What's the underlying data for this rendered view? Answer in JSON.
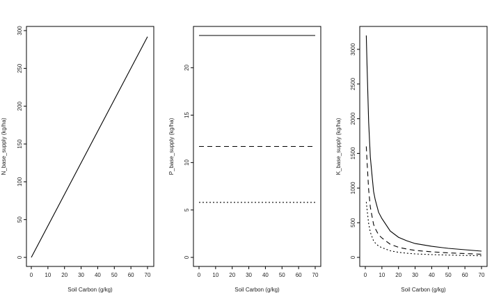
{
  "chart_data": [
    {
      "type": "line",
      "xlabel": "Soil Carbon (g/kg)",
      "ylabel": "N_base_supply (kg/ha)",
      "xlim": [
        0,
        70
      ],
      "ylim": [
        0,
        300
      ],
      "xticks": [
        0,
        10,
        20,
        30,
        40,
        50,
        60,
        70
      ],
      "yticks": [
        0,
        50,
        100,
        150,
        200,
        250,
        300
      ],
      "grid": false,
      "series": [
        {
          "style": "solid",
          "x": [
            0,
            70
          ],
          "y": [
            0,
            292
          ]
        }
      ]
    },
    {
      "type": "line",
      "xlabel": "Soil Carbon (g/kg)",
      "ylabel": "P_base_supply (kg/ha)",
      "xlim": [
        0,
        70
      ],
      "ylim": [
        0,
        23.4
      ],
      "xticks": [
        0,
        10,
        20,
        30,
        40,
        50,
        60,
        70
      ],
      "yticks": [
        0,
        5,
        10,
        15,
        20
      ],
      "grid": false,
      "series": [
        {
          "style": "solid",
          "x": [
            0,
            70
          ],
          "y": [
            23.4,
            23.4
          ]
        },
        {
          "style": "dashed",
          "x": [
            0,
            70
          ],
          "y": [
            11.7,
            11.7
          ]
        },
        {
          "style": "dotted",
          "x": [
            0,
            70
          ],
          "y": [
            5.8,
            5.8
          ]
        }
      ]
    },
    {
      "type": "line",
      "xlabel": "Soil Carbon (g/kg)",
      "ylabel": "K_base_supply (kg/ha)",
      "xlim": [
        0,
        70
      ],
      "ylim": [
        0,
        3200
      ],
      "xticks": [
        0,
        10,
        20,
        30,
        40,
        50,
        60,
        70
      ],
      "yticks": [
        0,
        500,
        1000,
        1500,
        2000,
        2500,
        3000
      ],
      "grid": false,
      "series": [
        {
          "style": "solid",
          "x": [
            0.6,
            1,
            2,
            3,
            4,
            5,
            6,
            8,
            10,
            15,
            20,
            25,
            30,
            40,
            50,
            60,
            70
          ],
          "y": [
            3200,
            2800,
            1950,
            1450,
            1200,
            950,
            830,
            650,
            560,
            380,
            290,
            240,
            200,
            160,
            130,
            110,
            90
          ]
        },
        {
          "style": "dashed",
          "x": [
            0.6,
            1,
            2,
            3,
            4,
            5,
            6,
            8,
            10,
            15,
            20,
            25,
            30,
            40,
            50,
            60,
            70
          ],
          "y": [
            1600,
            1400,
            975,
            725,
            600,
            475,
            415,
            325,
            280,
            190,
            145,
            120,
            100,
            80,
            65,
            55,
            45
          ]
        },
        {
          "style": "dotted",
          "x": [
            0.6,
            1,
            2,
            3,
            4,
            5,
            6,
            8,
            10,
            15,
            20,
            25,
            30,
            40,
            50,
            60,
            70
          ],
          "y": [
            800,
            700,
            488,
            363,
            300,
            238,
            208,
            163,
            140,
            95,
            73,
            60,
            50,
            40,
            33,
            28,
            23
          ]
        }
      ]
    }
  ]
}
